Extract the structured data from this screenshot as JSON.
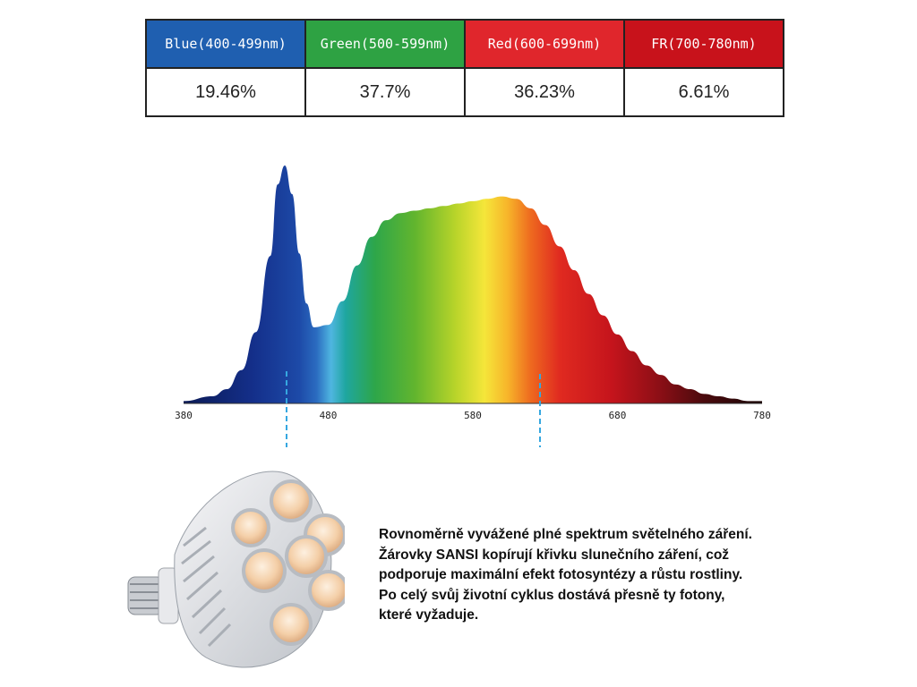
{
  "bands": [
    {
      "label": "Blue(400-499nm)",
      "value": "19.46%",
      "color": "#1f5fb0"
    },
    {
      "label": "Green(500-599nm)",
      "value": "37.7%",
      "color": "#2ea243"
    },
    {
      "label": "Red(600-699nm)",
      "value": "36.23%",
      "color": "#e0262c"
    },
    {
      "label": "FR(700-780nm)",
      "value": "6.61%",
      "color": "#c8121b"
    }
  ],
  "chart_data": {
    "type": "area",
    "xlabel": "",
    "ylabel": "",
    "xlim": [
      380,
      780
    ],
    "x_ticks": [
      "380",
      "480",
      "580",
      "680",
      "780"
    ],
    "grid": false,
    "series": [
      {
        "x": [
          380,
          400,
          410,
          420,
          430,
          440,
          445,
          450,
          455,
          460,
          465,
          470,
          480,
          490,
          500,
          510,
          520,
          530,
          540,
          550,
          560,
          570,
          580,
          590,
          600,
          610,
          620,
          630,
          640,
          650,
          660,
          670,
          680,
          690,
          700,
          710,
          720,
          730,
          740,
          750,
          760,
          770,
          780
        ],
        "y": [
          0.01,
          0.03,
          0.06,
          0.14,
          0.3,
          0.62,
          0.92,
          1.0,
          0.88,
          0.63,
          0.42,
          0.32,
          0.33,
          0.43,
          0.58,
          0.7,
          0.77,
          0.8,
          0.81,
          0.82,
          0.83,
          0.84,
          0.85,
          0.86,
          0.87,
          0.86,
          0.82,
          0.75,
          0.66,
          0.56,
          0.46,
          0.37,
          0.29,
          0.22,
          0.16,
          0.12,
          0.08,
          0.06,
          0.04,
          0.03,
          0.02,
          0.01,
          0.01
        ]
      }
    ]
  },
  "description": {
    "lines": [
      "Rovnoměrně vyvážené plné spektrum světelného záření.",
      "Žárovky SANSI kopírují křivku slunečního záření, což",
      "podporuje maximální efekt fotosyntézy a růstu rostliny.",
      "Po celý svůj životní cyklus dostává přesně ty fotony,",
      "které vyžaduje."
    ]
  },
  "icons": {
    "product": "led-grow-bulb-icon"
  }
}
